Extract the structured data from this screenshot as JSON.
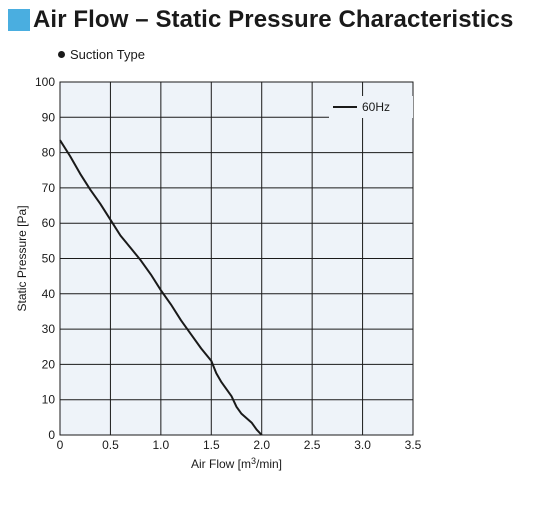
{
  "header": {
    "title": "Air Flow – Static Pressure Characteristics",
    "accent_color": "#4aaee0",
    "subtitle": "Suction Type"
  },
  "chart_data": {
    "type": "line",
    "xlabel_main": "Air Flow [m",
    "xlabel_sup": "3",
    "xlabel_end": "/min]",
    "ylabel": "Static Pressure [Pa]",
    "xlim": [
      0,
      3.5
    ],
    "ylim": [
      0,
      100
    ],
    "x_ticks": [
      "0",
      "0.5",
      "1.0",
      "1.5",
      "2.0",
      "2.5",
      "3.0",
      "3.5"
    ],
    "y_ticks": [
      "0",
      "10",
      "20",
      "30",
      "40",
      "50",
      "60",
      "70",
      "80",
      "90",
      "100"
    ],
    "grid": true,
    "plot_background": "#eef3f9",
    "legend_position": "top-right",
    "series": [
      {
        "name": "60Hz",
        "color": "#1a1a1a",
        "x": [
          0,
          0.1,
          0.2,
          0.3,
          0.4,
          0.5,
          0.6,
          0.7,
          0.8,
          0.9,
          1.0,
          1.1,
          1.2,
          1.3,
          1.4,
          1.5,
          1.55,
          1.6,
          1.7,
          1.75,
          1.8,
          1.9,
          1.95,
          2.0
        ],
        "y": [
          83.5,
          79,
          74,
          69.5,
          65.5,
          61,
          56.5,
          53,
          49.5,
          45.5,
          41,
          37,
          32.5,
          28.5,
          24.5,
          21,
          17.5,
          15,
          11,
          8,
          6,
          3.5,
          1.5,
          0
        ]
      }
    ]
  }
}
